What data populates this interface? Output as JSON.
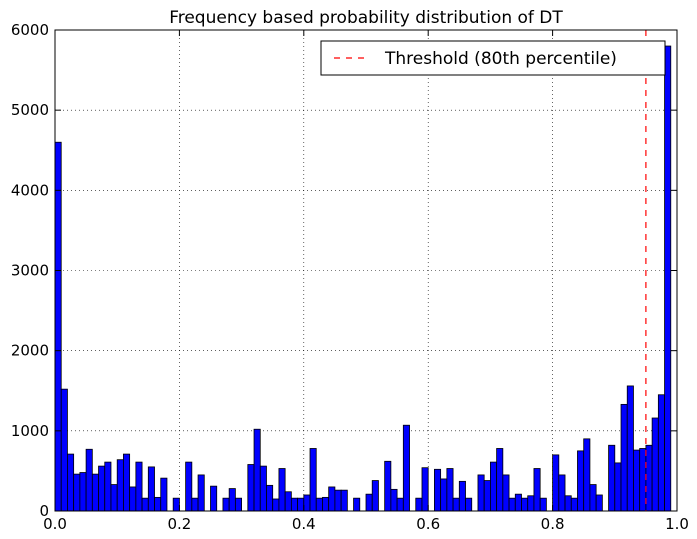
{
  "chart_data": {
    "type": "bar",
    "title": "Frequency based probability distribution of DT",
    "xlabel": "",
    "ylabel": "",
    "xlim": [
      0.0,
      1.0
    ],
    "ylim": [
      0,
      6000
    ],
    "bin_width": 0.01,
    "x_ticks": [
      "0.0",
      "0.2",
      "0.4",
      "0.6",
      "0.8",
      "1.0"
    ],
    "y_ticks": [
      "0",
      "1000",
      "2000",
      "3000",
      "4000",
      "5000",
      "6000"
    ],
    "grid": true,
    "bar_color": "#0000ff",
    "bar_edge_color": "#000000",
    "values": [
      4600,
      1520,
      710,
      460,
      480,
      770,
      460,
      560,
      610,
      330,
      640,
      710,
      300,
      610,
      160,
      550,
      170,
      410,
      0,
      160,
      0,
      610,
      160,
      450,
      0,
      310,
      0,
      160,
      280,
      160,
      0,
      580,
      1020,
      560,
      320,
      150,
      530,
      240,
      160,
      160,
      200,
      780,
      160,
      170,
      300,
      260,
      260,
      0,
      160,
      0,
      210,
      380,
      0,
      620,
      270,
      160,
      1070,
      0,
      160,
      540,
      0,
      520,
      400,
      530,
      160,
      370,
      160,
      0,
      450,
      380,
      610,
      780,
      450,
      160,
      210,
      160,
      190,
      530,
      160,
      0,
      700,
      450,
      190,
      160,
      750,
      900,
      330,
      200,
      0,
      820,
      600,
      1330,
      1560,
      760,
      780,
      820,
      1160,
      1450,
      5800,
      0
    ],
    "threshold": {
      "value": 0.95,
      "label": "Threshold (80th percentile)",
      "color": "#ff0000",
      "style": "dashed"
    },
    "legend": {
      "position": "top-right",
      "entries": [
        "Threshold (80th percentile)"
      ]
    }
  }
}
